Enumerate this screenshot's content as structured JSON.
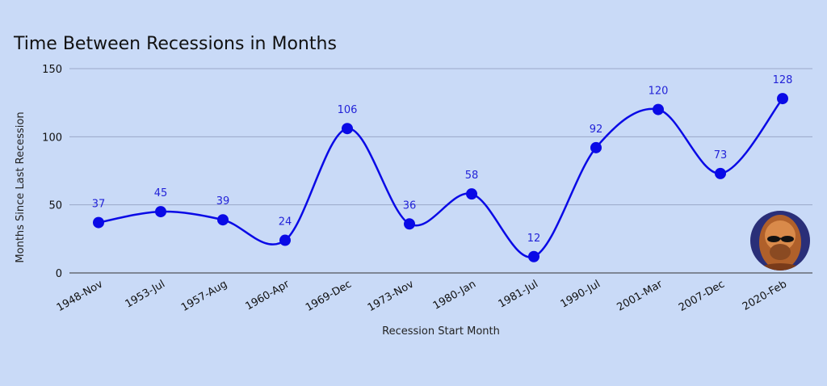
{
  "chart_data": {
    "type": "line",
    "title": "Time Between Recessions in Months",
    "xlabel": "Recession Start Month",
    "ylabel": "Months Since Last Recession",
    "categories": [
      "1948-Nov",
      "1953-Jul",
      "1957-Aug",
      "1960-Apr",
      "1969-Dec",
      "1973-Nov",
      "1980-Jan",
      "1981-Jul",
      "1990-Jul",
      "2001-Mar",
      "2007-Dec",
      "2020-Feb"
    ],
    "values": [
      37,
      45,
      39,
      24,
      106,
      36,
      58,
      12,
      92,
      120,
      73,
      128
    ],
    "yticks": [
      0,
      50,
      100,
      150
    ],
    "ylim": [
      0,
      150
    ],
    "grid": true,
    "line_color": "#0a0ae6",
    "label_color": "#2323d8",
    "background": "#c9daf7"
  }
}
